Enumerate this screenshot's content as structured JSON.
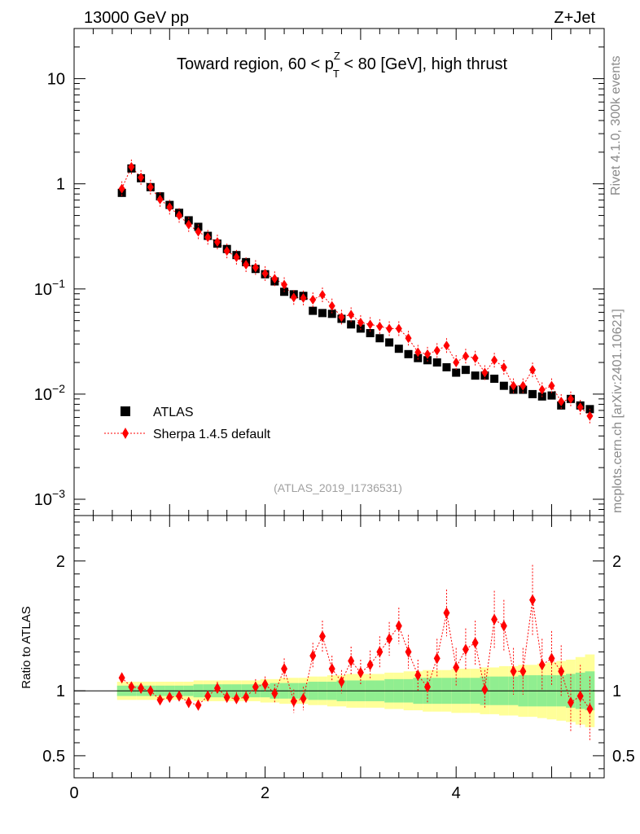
{
  "header": {
    "left": "13000 GeV pp",
    "right": "Z+Jet"
  },
  "side_labels": {
    "rivet": "Rivet 4.1.0,  300k events",
    "mcplots": "mcplots.cern.ch [arXiv:2401.10621]"
  },
  "chart_data": {
    "type": "scatter",
    "title": "Toward region, 60 < p_T^Z < 80 [GeV], high thrust",
    "title_parts": {
      "pre": "Toward region, 60 < p",
      "sup": "Z",
      "sub": "T",
      "post": " < 80 [GeV], high thrust"
    },
    "reference": "(ATLAS_2019_I1736531)",
    "xlim": [
      0,
      5.55
    ],
    "x_ticks": [
      "0",
      "2",
      "4"
    ],
    "x_tick_values": [
      0,
      2,
      4
    ],
    "main": {
      "yscale": "log",
      "ylim": [
        0.0007,
        30
      ],
      "y_ticks": [
        {
          "value": 0.001,
          "base": "10",
          "exp": "−3"
        },
        {
          "value": 0.01,
          "base": "10",
          "exp": "−2"
        },
        {
          "value": 0.1,
          "base": "10",
          "exp": "−1"
        },
        {
          "value": 1,
          "base": "1",
          "exp": ""
        },
        {
          "value": 10,
          "base": "10",
          "exp": ""
        }
      ]
    },
    "ratio": {
      "ylabel": "Ratio to ATLAS",
      "ylim": [
        0.33,
        2.35
      ],
      "y_ticks": [
        "0.5",
        "1",
        "2"
      ],
      "y_tick_values": [
        0.5,
        1,
        2
      ]
    },
    "legend": [
      {
        "label": "ATLAS",
        "marker": "square",
        "color": "#000000"
      },
      {
        "label": "Sherpa 1.4.5 default",
        "marker": "diamond",
        "color": "#ff0000"
      }
    ],
    "x": [
      0.5,
      0.6,
      0.7,
      0.8,
      0.9,
      1.0,
      1.1,
      1.2,
      1.3,
      1.4,
      1.5,
      1.6,
      1.7,
      1.8,
      1.9,
      2.0,
      2.1,
      2.2,
      2.3,
      2.4,
      2.5,
      2.6,
      2.7,
      2.8,
      2.9,
      3.0,
      3.1,
      3.2,
      3.3,
      3.4,
      3.5,
      3.6,
      3.7,
      3.8,
      3.9,
      4.0,
      4.1,
      4.2,
      4.3,
      4.4,
      4.5,
      4.6,
      4.7,
      4.8,
      4.9,
      5.0,
      5.1,
      5.2,
      5.3,
      5.4
    ],
    "series": [
      {
        "name": "ATLAS",
        "color": "#000000",
        "values": [
          0.82,
          1.4,
          1.13,
          0.93,
          0.76,
          0.63,
          0.53,
          0.45,
          0.39,
          0.32,
          0.27,
          0.24,
          0.21,
          0.18,
          0.155,
          0.138,
          0.118,
          0.094,
          0.089,
          0.086,
          0.062,
          0.059,
          0.058,
          0.052,
          0.046,
          0.042,
          0.038,
          0.034,
          0.031,
          0.027,
          0.024,
          0.022,
          0.021,
          0.02,
          0.018,
          0.016,
          0.017,
          0.015,
          0.015,
          0.014,
          0.012,
          0.011,
          0.011,
          0.01,
          0.0095,
          0.0097,
          0.0078,
          0.009,
          0.0078,
          0.0072
        ]
      },
      {
        "name": "Sherpa 1.4.5 default",
        "color": "#ff0000",
        "values": [
          0.9,
          1.45,
          1.15,
          0.93,
          0.71,
          0.6,
          0.5,
          0.41,
          0.35,
          0.31,
          0.28,
          0.23,
          0.2,
          0.17,
          0.16,
          0.14,
          0.125,
          0.11,
          0.083,
          0.082,
          0.079,
          0.088,
          0.069,
          0.054,
          0.057,
          0.048,
          0.046,
          0.044,
          0.042,
          0.042,
          0.034,
          0.025,
          0.024,
          0.026,
          0.029,
          0.02,
          0.023,
          0.022,
          0.016,
          0.021,
          0.018,
          0.012,
          0.012,
          0.017,
          0.011,
          0.012,
          0.0085,
          0.009,
          0.0075,
          0.0062
        ]
      }
    ],
    "ratio_values": [
      1.1,
      1.03,
      1.02,
      1.0,
      0.93,
      0.95,
      0.96,
      0.91,
      0.89,
      0.96,
      1.02,
      0.95,
      0.94,
      0.95,
      1.03,
      1.05,
      0.98,
      1.17,
      0.92,
      0.94,
      1.27,
      1.42,
      1.17,
      1.07,
      1.23,
      1.14,
      1.2,
      1.3,
      1.4,
      1.5,
      1.3,
      1.12,
      1.03,
      1.25,
      1.6,
      1.18,
      1.32,
      1.37,
      1.01,
      1.55,
      1.5,
      1.15,
      1.15,
      1.7,
      1.2,
      1.25,
      1.15,
      0.91,
      0.96,
      0.86
    ],
    "ratio_errors": [
      0.03,
      0.02,
      0.02,
      0.02,
      0.03,
      0.03,
      0.03,
      0.04,
      0.04,
      0.04,
      0.05,
      0.05,
      0.05,
      0.05,
      0.06,
      0.06,
      0.07,
      0.08,
      0.09,
      0.09,
      0.1,
      0.12,
      0.1,
      0.09,
      0.11,
      0.1,
      0.11,
      0.12,
      0.13,
      0.14,
      0.13,
      0.12,
      0.12,
      0.15,
      0.18,
      0.15,
      0.16,
      0.17,
      0.15,
      0.22,
      0.2,
      0.18,
      0.18,
      0.27,
      0.2,
      0.21,
      0.2,
      0.22,
      0.24,
      0.25
    ],
    "band_inner": [
      0.04,
      0.04,
      0.04,
      0.04,
      0.04,
      0.04,
      0.04,
      0.04,
      0.05,
      0.05,
      0.05,
      0.05,
      0.05,
      0.05,
      0.05,
      0.05,
      0.06,
      0.06,
      0.06,
      0.06,
      0.07,
      0.07,
      0.07,
      0.08,
      0.08,
      0.08,
      0.08,
      0.08,
      0.09,
      0.09,
      0.09,
      0.1,
      0.1,
      0.1,
      0.1,
      0.1,
      0.1,
      0.1,
      0.11,
      0.11,
      0.11,
      0.11,
      0.12,
      0.12,
      0.12,
      0.12,
      0.12,
      0.13,
      0.14,
      0.15
    ],
    "band_outer": [
      0.07,
      0.07,
      0.07,
      0.07,
      0.07,
      0.07,
      0.07,
      0.07,
      0.08,
      0.08,
      0.08,
      0.08,
      0.08,
      0.08,
      0.08,
      0.09,
      0.09,
      0.1,
      0.1,
      0.1,
      0.11,
      0.11,
      0.12,
      0.12,
      0.13,
      0.13,
      0.13,
      0.13,
      0.14,
      0.14,
      0.15,
      0.15,
      0.16,
      0.16,
      0.16,
      0.17,
      0.17,
      0.17,
      0.18,
      0.18,
      0.19,
      0.19,
      0.2,
      0.2,
      0.21,
      0.22,
      0.23,
      0.24,
      0.26,
      0.28
    ],
    "colors": {
      "data": "#000000",
      "mc": "#ff0000",
      "band_inner": "#90ee90",
      "band_outer": "#ffff99"
    }
  }
}
